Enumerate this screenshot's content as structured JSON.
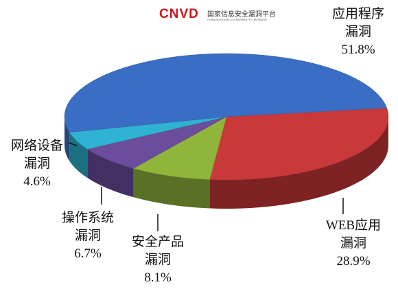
{
  "chart_data": {
    "type": "pie",
    "logo": {
      "mark": "CNVD",
      "name": "国家信息安全漏洞平台",
      "subtitle": "CHINA NATIONAL VULNERABILITY DATABASE"
    },
    "categories": [
      "应用程序漏洞",
      "WEB应用漏洞",
      "安全产品漏洞",
      "操作系统漏洞",
      "网络设备漏洞"
    ],
    "values": [
      51.8,
      28.9,
      8.1,
      6.7,
      4.6
    ],
    "value_labels": [
      "51.8%",
      "28.9%",
      "8.1%",
      "6.7%",
      "4.6%"
    ],
    "colors": [
      "#3a6ec4",
      "#c9393a",
      "#8fb53b",
      "#6b4d9e",
      "#2fb3d2"
    ]
  }
}
